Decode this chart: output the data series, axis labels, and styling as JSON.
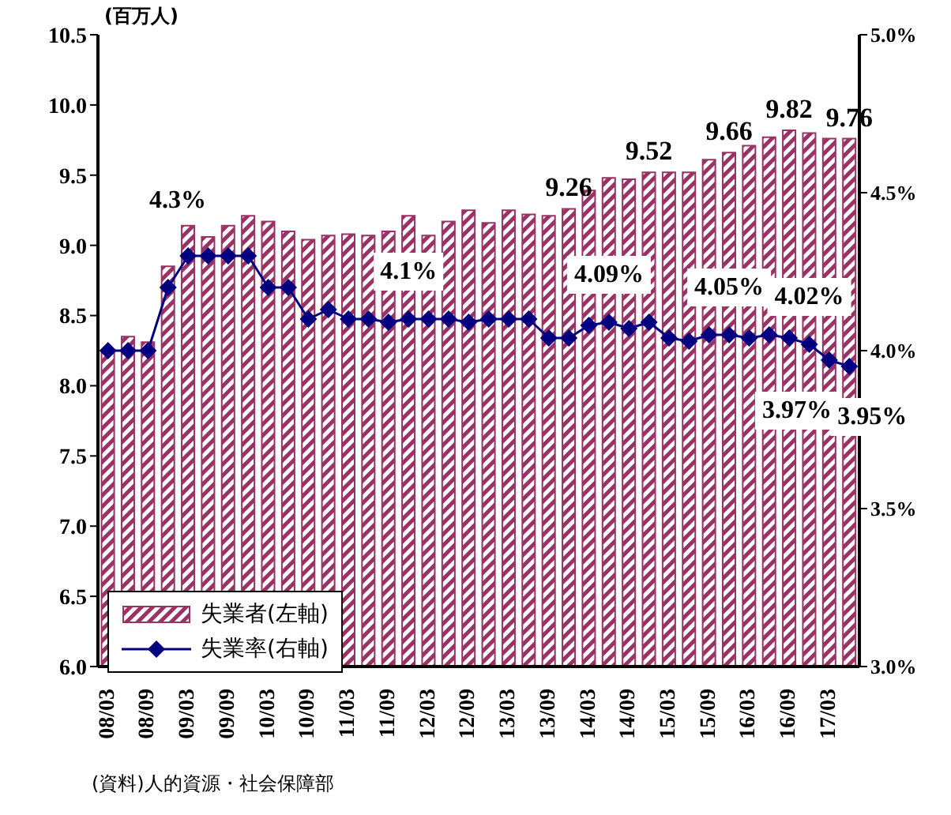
{
  "chart_data": {
    "type": "bar",
    "ylabel": "(百万人)",
    "annotations": [
      "(資料)人的資源・社会保障部"
    ],
    "categories": [
      "08/03",
      null,
      "08/09",
      null,
      "09/03",
      null,
      "09/09",
      null,
      "10/03",
      null,
      "10/09",
      null,
      "11/03",
      null,
      "11/09",
      null,
      "12/03",
      null,
      "12/09",
      null,
      "13/03",
      null,
      "13/09",
      null,
      "14/03",
      null,
      "14/09",
      null,
      "15/03",
      null,
      "15/09",
      null,
      "16/03",
      null,
      "16/09",
      null,
      "17/03",
      null
    ],
    "series": [
      {
        "name": "失業者(左軸)",
        "color": "#993366",
        "values": [
          8.25,
          8.35,
          8.31,
          8.85,
          9.14,
          9.06,
          9.14,
          9.21,
          9.17,
          9.1,
          9.04,
          9.07,
          9.08,
          9.07,
          9.1,
          9.21,
          9.07,
          9.17,
          9.25,
          9.16,
          9.25,
          9.22,
          9.21,
          9.26,
          9.39,
          9.48,
          9.47,
          9.52,
          9.52,
          9.52,
          9.61,
          9.66,
          9.71,
          9.77,
          9.82,
          9.8,
          9.76,
          9.76
        ],
        "value_labels": [
          null,
          null,
          null,
          null,
          null,
          null,
          null,
          null,
          null,
          null,
          null,
          null,
          null,
          null,
          null,
          null,
          null,
          null,
          null,
          null,
          null,
          null,
          null,
          "9.26",
          null,
          null,
          null,
          "9.52",
          null,
          null,
          null,
          "9.66",
          null,
          null,
          "9.82",
          null,
          null,
          "9.76"
        ]
      },
      {
        "name": "失業率(右軸)",
        "type": "line",
        "axis": "y2",
        "color": "#000080",
        "values": [
          4.0,
          4.0,
          4.0,
          4.2,
          4.3,
          4.3,
          4.3,
          4.3,
          4.2,
          4.2,
          4.1,
          4.13,
          4.1,
          4.1,
          4.09,
          4.1,
          4.1,
          4.1,
          4.09,
          4.1,
          4.1,
          4.1,
          4.04,
          4.04,
          4.08,
          4.09,
          4.07,
          4.09,
          4.04,
          4.03,
          4.05,
          4.05,
          4.04,
          4.05,
          4.04,
          4.02,
          3.97,
          3.95
        ],
        "value_labels": [
          null,
          null,
          null,
          null,
          null,
          null,
          "4.3%",
          null,
          null,
          null,
          null,
          null,
          null,
          null,
          null,
          "4.1%",
          null,
          null,
          null,
          null,
          null,
          null,
          null,
          null,
          null,
          "4.09%",
          null,
          null,
          null,
          null,
          null,
          "4.05%",
          null,
          null,
          null,
          "4.02%",
          "3.97%",
          "3.95%"
        ]
      }
    ],
    "ylim": [
      6,
      10.5
    ],
    "yticks": [
      {
        "value": 6,
        "label": "6.0"
      },
      6.5,
      {
        "value": 7,
        "label": "7.0"
      },
      7.5,
      {
        "value": 8,
        "label": "8.0"
      },
      8.5,
      {
        "value": 9,
        "label": "9.0"
      },
      9.5,
      {
        "value": 10,
        "label": "10.0"
      },
      10.5
    ],
    "y2lim": [
      3,
      5
    ],
    "y2ticks": [
      {
        "value": 3,
        "label": "3.0%"
      },
      {
        "value": 3.5,
        "label": "3.5%"
      },
      {
        "value": 4,
        "label": "4.0%"
      },
      {
        "value": 4.5,
        "label": "4.5%"
      },
      {
        "value": 5,
        "label": "5.0%"
      }
    ],
    "legend": "bottom left",
    "marker": "diamond"
  }
}
